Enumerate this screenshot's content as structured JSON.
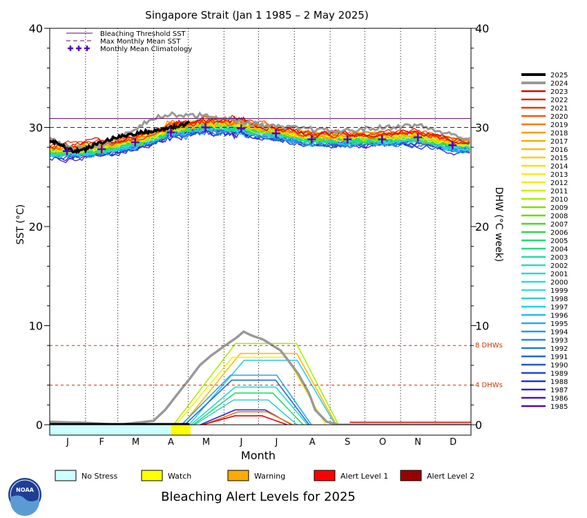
{
  "chart_data": {
    "type": "line",
    "title": "Singapore Strait      (Jan 1 1985 – 2 May 2025)",
    "xlabel": "Month",
    "ylabel_left": "SST (°C)",
    "ylabel_right": "DHW (°C week)",
    "months": [
      "J",
      "F",
      "M",
      "A",
      "M",
      "J",
      "J",
      "A",
      "S",
      "O",
      "N",
      "D"
    ],
    "ylim": [
      0,
      40
    ],
    "yticks": [
      0,
      10,
      20,
      30,
      40
    ],
    "xlim_day": [
      0,
      365
    ],
    "legend_main": [
      {
        "label": "Bleaching Threshold SST",
        "color": "#660066",
        "style": "solid"
      },
      {
        "label": "Max Monthly Mean SST",
        "color": "#660066",
        "style": "dashed"
      },
      {
        "label": "Monthly Mean Climatology",
        "color": "#5500bb",
        "style": "plus"
      }
    ],
    "bleaching_threshold": 30.9,
    "mmm": 30.0,
    "climatology_day": [
      15,
      45,
      74,
      105,
      135,
      166,
      196,
      227,
      258,
      288,
      319,
      349
    ],
    "climatology": [
      27.6,
      27.8,
      28.5,
      29.5,
      30.0,
      29.9,
      29.4,
      28.8,
      28.8,
      28.8,
      29.0,
      28.2
    ],
    "dhw_reference_lines": [
      {
        "value": 8,
        "label": "8 DHWs"
      },
      {
        "value": 4,
        "label": "4 DHWs"
      }
    ],
    "years": [
      "2025",
      "2024",
      "2023",
      "2022",
      "2021",
      "2020",
      "2019",
      "2018",
      "2017",
      "2016",
      "2015",
      "2014",
      "2013",
      "2012",
      "2011",
      "2010",
      "2009",
      "2008",
      "2007",
      "2006",
      "2005",
      "2004",
      "2003",
      "2002",
      "2001",
      "2000",
      "1999",
      "1998",
      "1997",
      "1996",
      "1995",
      "1994",
      "1993",
      "1992",
      "1991",
      "1990",
      "1989",
      "1988",
      "1987",
      "1986",
      "1985"
    ],
    "year_colors": [
      "#000000",
      "#999999",
      "#dd0000",
      "#e52200",
      "#ee3300",
      "#ff5500",
      "#ff7700",
      "#ff9900",
      "#ffaa00",
      "#ffbb00",
      "#ffcc00",
      "#ffdd00",
      "#ffee00",
      "#eeee00",
      "#ccee00",
      "#aaee00",
      "#88dd00",
      "#66dd00",
      "#44dd22",
      "#22dd44",
      "#22dd66",
      "#22dd88",
      "#22ddaa",
      "#22ddbb",
      "#22ddcc",
      "#22dddd",
      "#33dddd",
      "#33ccdd",
      "#22ccee",
      "#22bbee",
      "#22aaee",
      "#2299ee",
      "#2288dd",
      "#2277dd",
      "#2266dd",
      "#2255dd",
      "#2244cc",
      "#2233cc",
      "#3322cc",
      "#4411cc",
      "#5500cc"
    ],
    "sst_2025": {
      "day": [
        0,
        10,
        20,
        31,
        40,
        50,
        59,
        70,
        80,
        90,
        100,
        110,
        121
      ],
      "value": [
        28.7,
        28.2,
        27.6,
        27.8,
        28.3,
        28.7,
        29.0,
        29.3,
        29.5,
        29.6,
        29.9,
        30.1,
        30.5
      ]
    },
    "sst_2024": {
      "day": [
        0,
        20,
        40,
        59,
        80,
        90,
        100,
        110,
        121,
        140,
        160,
        180,
        200,
        220,
        250,
        280,
        300,
        320,
        340,
        364
      ],
      "value": [
        28.8,
        27.8,
        28.2,
        29.0,
        30.3,
        31.0,
        31.2,
        31.3,
        31.3,
        31.1,
        30.7,
        30.3,
        30.0,
        29.9,
        29.6,
        29.9,
        30.1,
        30.2,
        29.5,
        28.8
      ]
    },
    "dhw_2024": {
      "day": [
        0,
        30,
        60,
        90,
        100,
        110,
        121,
        130,
        140,
        152,
        162,
        168,
        175,
        185,
        200,
        215,
        225,
        230,
        240,
        250,
        365
      ],
      "value": [
        0.3,
        0.2,
        0,
        0.4,
        1.5,
        3.0,
        4.6,
        6.0,
        7.0,
        8.0,
        8.8,
        9.4,
        9.0,
        8.6,
        7.5,
        5.2,
        3.1,
        1.5,
        0.3,
        0,
        0
      ]
    },
    "dhw_others": [
      {
        "year": "2010",
        "peak": 8.2
      },
      {
        "year": "2016",
        "peak": 7.2
      },
      {
        "year": "2013",
        "peak": 6.8
      },
      {
        "year": "1998",
        "peak": 6.5
      },
      {
        "year": "1995",
        "peak": 5.0
      },
      {
        "year": "1991",
        "peak": 4.5
      },
      {
        "year": "2001",
        "peak": 3.8
      },
      {
        "year": "2005",
        "peak": 3.2
      },
      {
        "year": "1998",
        "peak": 2.5
      },
      {
        "year": "1987",
        "peak": 1.5
      },
      {
        "year": "2019",
        "peak": 1.3
      },
      {
        "year": "2023",
        "peak": 0.9
      }
    ],
    "alert_strip": [
      {
        "from_day": 0,
        "to_day": 105,
        "level": "No Stress"
      },
      {
        "from_day": 105,
        "to_day": 122,
        "level": "Watch"
      }
    ]
  },
  "alert_legend": [
    {
      "label": "No Stress",
      "color": "#ccffff"
    },
    {
      "label": "Watch",
      "color": "#ffff00"
    },
    {
      "label": "Warning",
      "color": "#ffaa00"
    },
    {
      "label": "Alert Level 1",
      "color": "#ff0000"
    },
    {
      "label": "Alert Level 2",
      "color": "#990000"
    }
  ],
  "footer_title": "Bleaching Alert Levels for 2025",
  "logo_text": "NOAA"
}
